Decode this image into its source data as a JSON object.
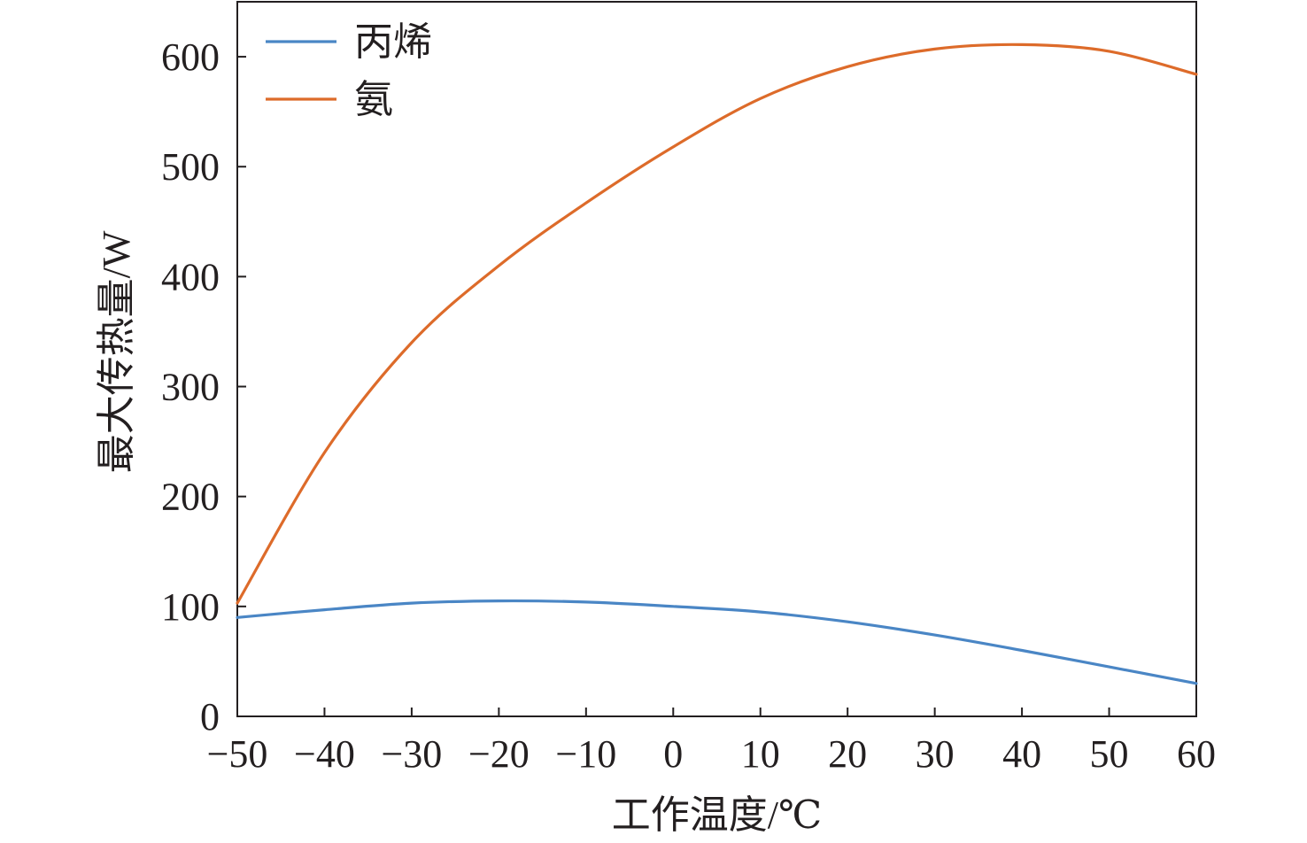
{
  "chart_data": {
    "type": "line",
    "xlabel": "工作温度/℃",
    "ylabel": "最大传热量/W",
    "xlim": [
      -50,
      60
    ],
    "ylim": [
      0,
      650
    ],
    "xticks": [
      -50,
      -40,
      -30,
      -20,
      -10,
      0,
      10,
      20,
      30,
      40,
      50,
      60
    ],
    "xtick_labels": [
      "−50",
      "−40",
      "−30",
      "−20",
      "−10",
      "0",
      "10",
      "20",
      "30",
      "40",
      "50",
      "60"
    ],
    "yticks": [
      0,
      100,
      200,
      300,
      400,
      500,
      600
    ],
    "ytick_labels": [
      "0",
      "100",
      "200",
      "300",
      "400",
      "500",
      "600"
    ],
    "grid": false,
    "legend_position": "top-left",
    "series": [
      {
        "name": "丙烯",
        "color": "#4a86c5",
        "x": [
          -50,
          -40,
          -30,
          -20,
          -10,
          0,
          10,
          20,
          30,
          40,
          50,
          60
        ],
        "y": [
          90,
          97,
          103,
          105,
          104,
          100,
          95,
          86,
          74,
          60,
          45,
          30
        ]
      },
      {
        "name": "氨",
        "color": "#dd6b2a",
        "x": [
          -50,
          -40,
          -30,
          -20,
          -10,
          0,
          10,
          20,
          30,
          40,
          50,
          60
        ],
        "y": [
          103,
          240,
          340,
          410,
          467,
          518,
          562,
          591,
          607,
          611,
          605,
          584
        ]
      }
    ]
  }
}
